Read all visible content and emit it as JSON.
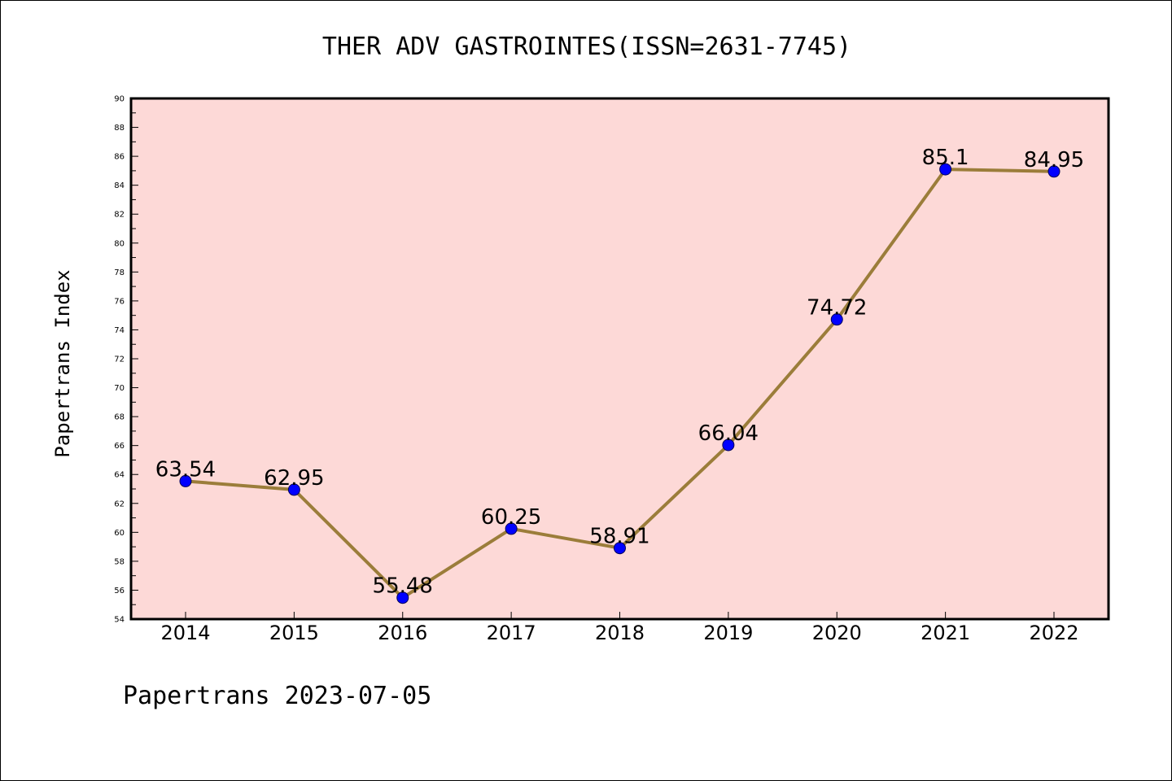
{
  "chart_data": {
    "type": "line",
    "title": "THER ADV GASTROINTES(ISSN=2631-7745)",
    "ylabel": "Papertrans Index",
    "xlabel": "",
    "footer": "Papertrans 2023-07-05",
    "categories": [
      "2014",
      "2015",
      "2016",
      "2017",
      "2018",
      "2019",
      "2020",
      "2021",
      "2022"
    ],
    "series": [
      {
        "values": [
          63.54,
          62.95,
          55.48,
          60.25,
          58.91,
          66.04,
          74.72,
          85.1,
          84.95
        ],
        "labels": [
          "63.54",
          "62.95",
          "55.48",
          "60.25",
          "58.91",
          "66.04",
          "74.72",
          "85.1",
          "84.95"
        ]
      }
    ],
    "ylim": [
      54,
      90
    ],
    "yticks": [
      "54",
      "56",
      "58",
      "60",
      "62",
      "64",
      "66",
      "68",
      "70",
      "72",
      "74",
      "76",
      "78",
      "80",
      "82",
      "84",
      "86",
      "88",
      "90"
    ],
    "grid": false,
    "colors": {
      "plot_background": "#fdd9d7",
      "line": "#9b7d3a",
      "marker": "#0000ff",
      "axis": "#000000"
    }
  }
}
